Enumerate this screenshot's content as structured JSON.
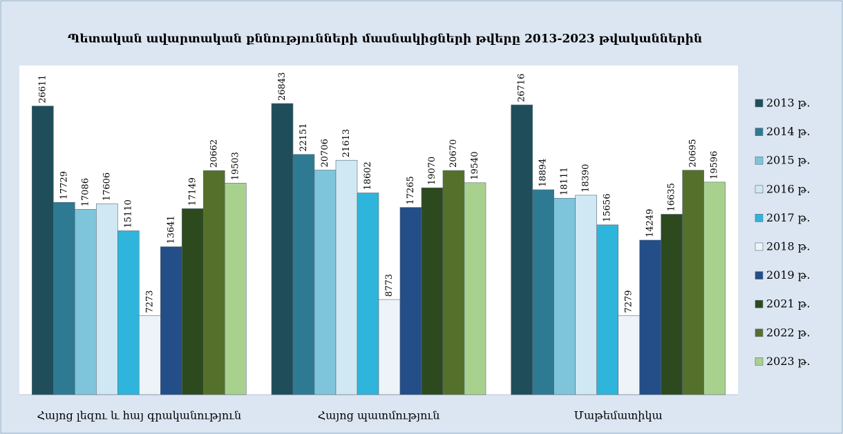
{
  "chart_data": {
    "type": "bar",
    "title": "Պետական ավարտական քննությունների մասնակիցների թվերը 2013-2023 թվականներին",
    "categories": [
      "Հայոց լեզու և հայ գրականություն",
      "Հայոց պատմություն",
      "Մաթեմատիկա"
    ],
    "series": [
      {
        "name": "2013 թ.",
        "color": "#1f4e5a",
        "values": [
          26611,
          26843,
          26716
        ]
      },
      {
        "name": "2014 թ.",
        "color": "#2e7a92",
        "values": [
          17729,
          22151,
          18894
        ]
      },
      {
        "name": "2015 թ.",
        "color": "#7ec5dc",
        "values": [
          17086,
          20706,
          18111
        ]
      },
      {
        "name": "2016 թ.",
        "color": "#cfe8f3",
        "values": [
          17606,
          21613,
          18390
        ]
      },
      {
        "name": "2017 թ.",
        "color": "#2fb5dc",
        "values": [
          15110,
          18602,
          15656
        ]
      },
      {
        "name": "2018 թ.",
        "color": "#eef3fa",
        "values": [
          7273,
          8773,
          7279
        ]
      },
      {
        "name": "2019 թ.",
        "color": "#234e87",
        "values": [
          13641,
          17265,
          14249
        ]
      },
      {
        "name": "2021 թ.",
        "color": "#2d4a1f",
        "values": [
          17149,
          19070,
          16635
        ]
      },
      {
        "name": "2022 թ.",
        "color": "#55702b",
        "values": [
          20662,
          20670,
          20695
        ]
      },
      {
        "name": "2023 թ.",
        "color": "#a9d18e",
        "values": [
          19503,
          19540,
          19596
        ]
      }
    ],
    "legend": "right"
  }
}
